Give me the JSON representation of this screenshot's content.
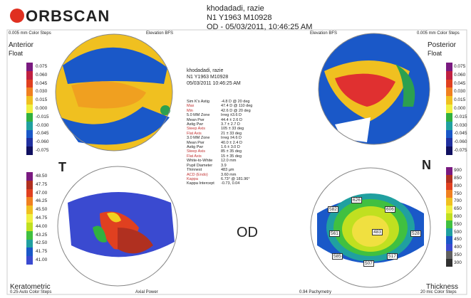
{
  "header": {
    "logo": "ORBSCAN",
    "patient": "khodadadi, razie",
    "id": "N1 Y1963 M10928",
    "exam": "OD - 05/03/2011, 10:46:25 AM"
  },
  "panels": [
    {
      "title": "Anterior",
      "subtitle": "Float",
      "steps": "0.005 mm Color Steps",
      "mode": "Elevation BFS",
      "scale": [
        "0.075",
        "0.060",
        "0.045",
        "0.030",
        "0.015",
        "0.000",
        "-0.015",
        "-0.030",
        "-0.045",
        "-0.060",
        "-0.075"
      ]
    },
    {
      "title": "Posterior",
      "subtitle": "Float",
      "steps": "0.005 mm Color Steps",
      "mode": "Elevation BFS",
      "scale": [
        "0.075",
        "0.060",
        "0.045",
        "0.030",
        "0.015",
        "0.000",
        "-0.015",
        "-0.030",
        "-0.045",
        "-0.060",
        "-0.075"
      ]
    },
    {
      "title": "Keratometric",
      "steps": "0.25 Auto Color Steps",
      "mode": "Axial Power",
      "scale": [
        "48.50",
        "47.75",
        "47.00",
        "46.25",
        "45.50",
        "44.75",
        "44.00",
        "43.25",
        "42.50",
        "41.75",
        "41.00"
      ]
    },
    {
      "title": "Thickness",
      "steps": "20 mic Color Steps",
      "mode": "0.94 Pachymetry",
      "scale": [
        "900",
        "850",
        "800",
        "750",
        "700",
        "650",
        "600",
        "550",
        "500",
        "450",
        "400",
        "350",
        "300"
      ]
    }
  ],
  "center": {
    "patient": "khodadadi, razie",
    "id": "N1 Y1963 M10928",
    "date": "05/03/2011 10:46:25 AM",
    "rows": [
      [
        "Sim K's Astig",
        "-4.8 D @ 20 deg"
      ],
      [
        "Max",
        "47.4 D @ 110 deg"
      ],
      [
        "Min",
        "42.6 D @ 20 deg"
      ],
      [
        "5.0 MM Zone",
        "Irreg ±3.6 D"
      ],
      [
        "Mean Pwr",
        "44.4 ± 2.6 D"
      ],
      [
        "Astig Pwr",
        "3.7 ± 2.7 D"
      ],
      [
        "Steep Axis",
        "105 ± 33 deg"
      ],
      [
        "Flat Axis",
        "21 ± 33 deg"
      ],
      [
        "3.0 MM Zone",
        "Irreg ±4.6 D"
      ],
      [
        "Mean Pwr",
        "40.0 ± 2.4 D"
      ],
      [
        "Astig Pwr",
        "1.6 ± 3.0 D"
      ],
      [
        "Steep Axis",
        "85 ± 35 deg"
      ],
      [
        "Flat Axis",
        "15 ± 35 deg"
      ],
      [
        "White-to-White",
        "12.0 mm"
      ],
      [
        "Pupil Diameter",
        "3.9"
      ],
      [
        "Thinnest",
        "483 µm"
      ],
      [
        "ACD (Endo)",
        "3.60 mm"
      ],
      [
        "Kappa",
        "6.73° @ 181.96°"
      ],
      [
        "Kappa Intercept",
        "-0.73, 0.04"
      ]
    ]
  },
  "labels": {
    "temporal": "T",
    "nasal": "N",
    "eye": "OD"
  },
  "pachy": [
    "626",
    "582",
    "606",
    "561",
    "483",
    "528",
    "585",
    "517",
    "507"
  ]
}
